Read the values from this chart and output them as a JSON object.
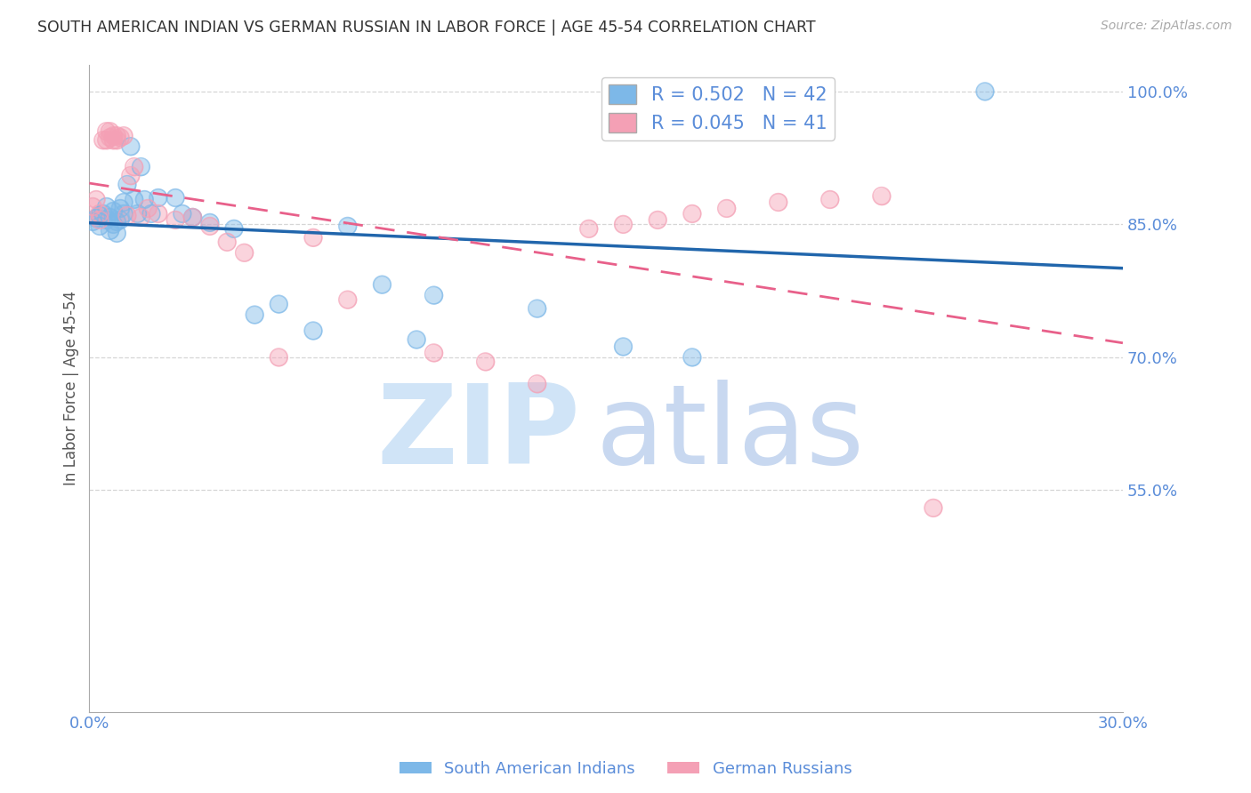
{
  "title": "SOUTH AMERICAN INDIAN VS GERMAN RUSSIAN IN LABOR FORCE | AGE 45-54 CORRELATION CHART",
  "source": "Source: ZipAtlas.com",
  "ylabel": "In Labor Force | Age 45-54",
  "r_blue": 0.502,
  "n_blue": 42,
  "r_pink": 0.045,
  "n_pink": 41,
  "legend_label_blue": "South American Indians",
  "legend_label_pink": "German Russians",
  "xlim": [
    0.0,
    0.3
  ],
  "ylim": [
    0.3,
    1.03
  ],
  "xticks": [
    0.0,
    0.05,
    0.1,
    0.15,
    0.2,
    0.25,
    0.3
  ],
  "xtick_labels": [
    "0.0%",
    "",
    "",
    "",
    "",
    "",
    "30.0%"
  ],
  "yticks_right": [
    0.55,
    0.7,
    0.85,
    1.0
  ],
  "ytick_labels_right": [
    "55.0%",
    "70.0%",
    "85.0%",
    "100.0%"
  ],
  "blue_color": "#7db8e8",
  "pink_color": "#f4a0b5",
  "trend_blue_color": "#2166ac",
  "trend_pink_color": "#e8608a",
  "watermark_zip_color": "#d0e4f7",
  "watermark_atlas_color": "#c8d8f0",
  "title_color": "#333333",
  "axis_label_color": "#5b8dd9",
  "grid_color": "#cccccc",
  "background_color": "#ffffff",
  "blue_x": [
    0.001,
    0.002,
    0.003,
    0.003,
    0.004,
    0.005,
    0.005,
    0.006,
    0.006,
    0.007,
    0.007,
    0.008,
    0.008,
    0.009,
    0.009,
    0.01,
    0.01,
    0.011,
    0.012,
    0.013,
    0.014,
    0.015,
    0.016,
    0.018,
    0.02,
    0.025,
    0.027,
    0.03,
    0.035,
    0.042,
    0.048,
    0.055,
    0.065,
    0.075,
    0.085,
    0.095,
    0.1,
    0.13,
    0.155,
    0.175,
    0.21,
    0.26
  ],
  "blue_y": [
    0.853,
    0.857,
    0.86,
    0.848,
    0.862,
    0.855,
    0.87,
    0.843,
    0.858,
    0.85,
    0.865,
    0.853,
    0.84,
    0.868,
    0.855,
    0.862,
    0.875,
    0.895,
    0.938,
    0.878,
    0.862,
    0.915,
    0.878,
    0.862,
    0.88,
    0.88,
    0.862,
    0.858,
    0.852,
    0.845,
    0.748,
    0.76,
    0.73,
    0.848,
    0.782,
    0.72,
    0.77,
    0.755,
    0.712,
    0.7,
    0.955,
    1.0
  ],
  "pink_x": [
    0.001,
    0.002,
    0.003,
    0.003,
    0.004,
    0.005,
    0.005,
    0.006,
    0.006,
    0.007,
    0.007,
    0.008,
    0.008,
    0.009,
    0.01,
    0.011,
    0.012,
    0.013,
    0.015,
    0.017,
    0.02,
    0.025,
    0.03,
    0.035,
    0.04,
    0.045,
    0.055,
    0.065,
    0.075,
    0.1,
    0.115,
    0.13,
    0.145,
    0.155,
    0.165,
    0.175,
    0.185,
    0.2,
    0.215,
    0.23,
    0.245
  ],
  "pink_y": [
    0.87,
    0.878,
    0.855,
    0.862,
    0.945,
    0.945,
    0.955,
    0.948,
    0.955,
    0.945,
    0.95,
    0.945,
    0.95,
    0.948,
    0.95,
    0.86,
    0.905,
    0.915,
    0.858,
    0.868,
    0.862,
    0.855,
    0.858,
    0.848,
    0.83,
    0.818,
    0.7,
    0.835,
    0.765,
    0.705,
    0.695,
    0.67,
    0.845,
    0.85,
    0.855,
    0.862,
    0.868,
    0.875,
    0.878,
    0.882,
    0.53
  ]
}
